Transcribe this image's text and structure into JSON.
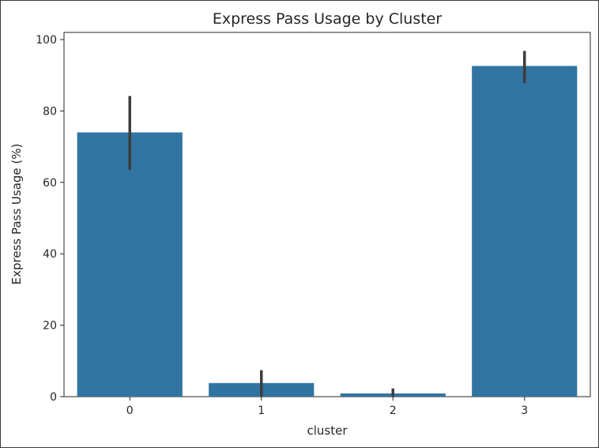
{
  "chart_data": {
    "type": "bar",
    "title": "Express Pass Usage by Cluster",
    "xlabel": "cluster",
    "ylabel": "Express Pass Usage (%)",
    "categories": [
      "0",
      "1",
      "2",
      "3"
    ],
    "values": [
      74,
      3.8,
      0.9,
      92.6
    ],
    "error_bars": [
      {
        "low": 63.5,
        "high": 84.2
      },
      {
        "low": 0,
        "high": 7.4
      },
      {
        "low": 0,
        "high": 2.3
      },
      {
        "low": 87.8,
        "high": 96.8
      }
    ],
    "ylim": [
      0,
      102
    ],
    "yticks": [
      0,
      20,
      40,
      60,
      80,
      100
    ],
    "grid": false,
    "legend": "none",
    "bar_color": "#3274a1",
    "errorbar_color": "#3d3d3d"
  }
}
